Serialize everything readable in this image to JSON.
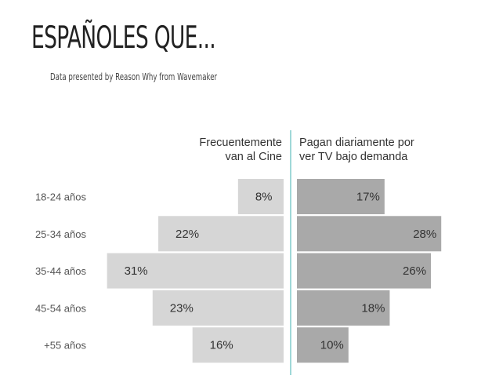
{
  "header": {
    "title": "ESPAÑOLES QUE...",
    "subtitle": "Data presented by Reason Why from Wavemaker"
  },
  "colors": {
    "left_bar": "#d6d6d6",
    "right_bar": "#a9a9a9",
    "divider": "#6cc4c4",
    "text": "#333333"
  },
  "chart_data": {
    "type": "bar",
    "orientation": "horizontal-butterfly",
    "categories": [
      "18-24 años",
      "25-34 años",
      "35-44 años",
      "45-54 años",
      "+55 años"
    ],
    "unit": "%",
    "xlim": [
      0,
      31
    ],
    "series": [
      {
        "name_lines": [
          "Frecuentemente",
          "van al Cine"
        ],
        "values": [
          8,
          22,
          31,
          23,
          16
        ],
        "direction": "left"
      },
      {
        "name_lines": [
          "Pagan diariamente por",
          "ver TV bajo demanda"
        ],
        "values": [
          17,
          28,
          26,
          18,
          10
        ],
        "direction": "right"
      }
    ]
  }
}
